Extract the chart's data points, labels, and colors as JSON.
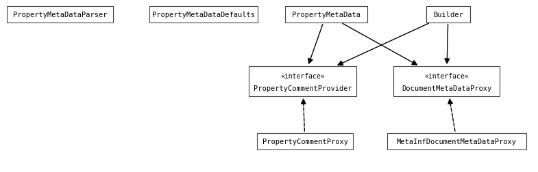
{
  "background_color": "#ffffff",
  "fig_w": 7.85,
  "fig_h": 2.53,
  "dpi": 100,
  "boxes": [
    {
      "id": "PropertyMetaDataParser",
      "xp": 10,
      "yp": 10,
      "wp": 155,
      "hp": 24,
      "stereotype": null,
      "label": "PropertyMetaDataParser"
    },
    {
      "id": "PropertyMetaDataDefaults",
      "xp": 218,
      "yp": 10,
      "wp": 158,
      "hp": 24,
      "stereotype": null,
      "label": "PropertyMetaDataDefaults"
    },
    {
      "id": "PropertyMetaData",
      "xp": 416,
      "yp": 10,
      "wp": 120,
      "hp": 24,
      "stereotype": null,
      "label": "PropertyMetaData"
    },
    {
      "id": "Builder",
      "xp": 622,
      "yp": 10,
      "wp": 64,
      "hp": 24,
      "stereotype": null,
      "label": "Builder"
    },
    {
      "id": "PropertyCommentProvider",
      "xp": 363,
      "yp": 98,
      "wp": 157,
      "hp": 44,
      "stereotype": "«interface»",
      "label": "PropertyCommentProvider"
    },
    {
      "id": "DocumentMetaDataProxy",
      "xp": 574,
      "yp": 98,
      "wp": 155,
      "hp": 44,
      "stereotype": "«interface»",
      "label": "DocumentMetaDataProxy"
    },
    {
      "id": "PropertyCommentProxy",
      "xp": 375,
      "yp": 196,
      "wp": 140,
      "hp": 24,
      "stereotype": null,
      "label": "PropertyCommentProxy"
    },
    {
      "id": "MetaInfDocumentMetaDataProxy",
      "xp": 565,
      "yp": 196,
      "wp": 203,
      "hp": 24,
      "stereotype": null,
      "label": "MetaInfDocumentMetaDataProxy"
    }
  ],
  "arrows": [
    {
      "type": "solid_filled",
      "from": "PropertyMetaData",
      "to": "PropertyCommentProvider"
    },
    {
      "type": "solid_filled",
      "from": "PropertyMetaData",
      "to": "DocumentMetaDataProxy"
    },
    {
      "type": "solid_filled",
      "from": "Builder",
      "to": "PropertyCommentProvider"
    },
    {
      "type": "solid_filled",
      "from": "Builder",
      "to": "DocumentMetaDataProxy"
    },
    {
      "type": "dashed_open",
      "from": "PropertyCommentProxy",
      "to": "PropertyCommentProvider"
    },
    {
      "type": "dashed_open",
      "from": "MetaInfDocumentMetaDataProxy",
      "to": "DocumentMetaDataProxy"
    }
  ],
  "box_edge_color": "#444444",
  "box_face_color": "#ffffff",
  "text_color": "#000000",
  "arrow_color": "#000000",
  "font_size": 7.5,
  "stereo_font_size": 7.0
}
